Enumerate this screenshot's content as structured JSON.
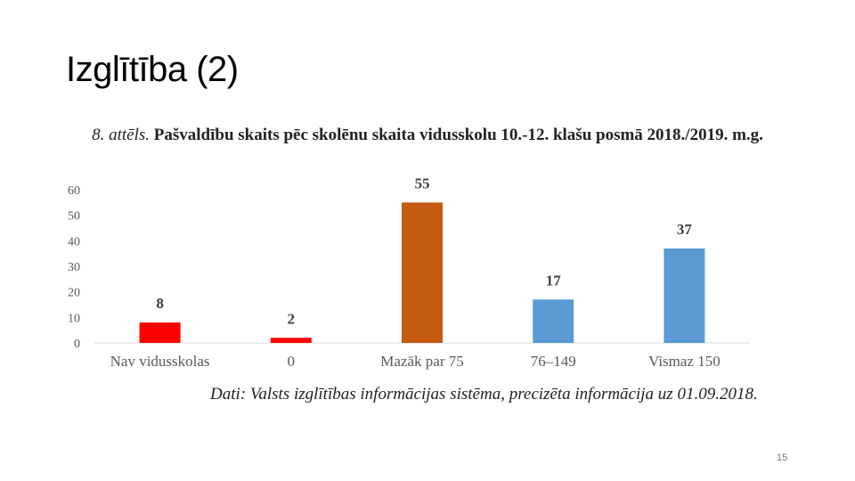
{
  "slide": {
    "title": "Izglītība (2)",
    "page_number": "15"
  },
  "figure": {
    "caption_lead": "8. attēls.",
    "caption_body": "Pašvaldību skaits pēc skolēnu skaita vidusskolu 10.-12. klašu posmā 2018./2019. m.g.",
    "source": "Dati: Valsts izglītības informācijas sistēma, precizēta informācija uz 01.09.2018."
  },
  "chart_data": {
    "type": "bar",
    "title": "8. attēls. Pašvaldību skaits pēc skolēnu skaita vidusskolu 10.-12. klašu posmā 2018./2019. m.g.",
    "categories": [
      "Nav vidusskolas",
      "0",
      "Mazāk par 75",
      "76–149",
      "Vismaz 150"
    ],
    "values": [
      8,
      2,
      55,
      17,
      37
    ],
    "bar_colors": [
      "#ff0000",
      "#ff0000",
      "#c55a11",
      "#5b9bd5",
      "#5b9bd5"
    ],
    "data_labels": [
      "8",
      "2",
      "55",
      "17",
      "37"
    ],
    "ylim": [
      0,
      60
    ],
    "yticks": [
      0,
      10,
      20,
      30,
      40,
      50,
      60
    ],
    "grid": false,
    "legend": "none",
    "xlabel": "",
    "ylabel": ""
  }
}
